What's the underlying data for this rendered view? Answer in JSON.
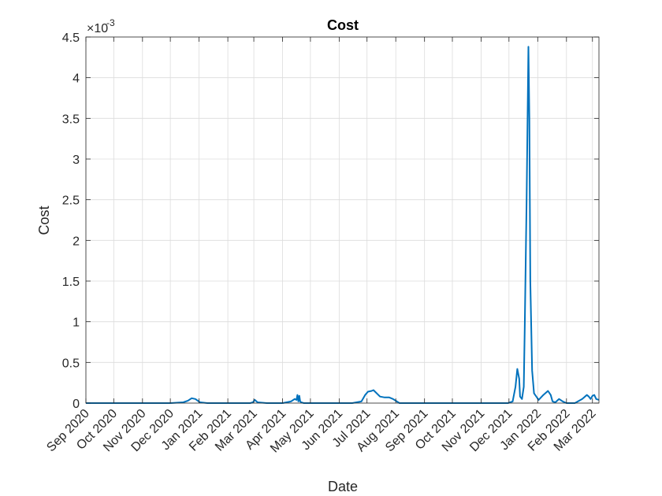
{
  "chart_data": {
    "type": "line",
    "title": "Cost",
    "xlabel": "Date",
    "ylabel": "Cost",
    "y_exponent_base": "×10",
    "y_exponent": "-3",
    "grid": true,
    "xlim": [
      "2020-09-01",
      "2022-03-08"
    ],
    "ylim": [
      0,
      4.5
    ],
    "x_ticks": [
      {
        "date": "2020-09-01",
        "label": "Sep 2020"
      },
      {
        "date": "2020-10-01",
        "label": "Oct 2020"
      },
      {
        "date": "2020-11-01",
        "label": "Nov 2020"
      },
      {
        "date": "2020-12-01",
        "label": "Dec 2020"
      },
      {
        "date": "2021-01-01",
        "label": "Jan 2021"
      },
      {
        "date": "2021-02-01",
        "label": "Feb 2021"
      },
      {
        "date": "2021-03-01",
        "label": "Mar 2021"
      },
      {
        "date": "2021-04-01",
        "label": "Apr 2021"
      },
      {
        "date": "2021-05-01",
        "label": "May 2021"
      },
      {
        "date": "2021-06-01",
        "label": "Jun 2021"
      },
      {
        "date": "2021-07-01",
        "label": "Jul 2021"
      },
      {
        "date": "2021-08-01",
        "label": "Aug 2021"
      },
      {
        "date": "2021-09-01",
        "label": "Sep 2021"
      },
      {
        "date": "2021-10-01",
        "label": "Oct 2021"
      },
      {
        "date": "2021-11-01",
        "label": "Nov 2021"
      },
      {
        "date": "2021-12-01",
        "label": "Dec 2021"
      },
      {
        "date": "2022-01-01",
        "label": "Jan 2022"
      },
      {
        "date": "2022-02-01",
        "label": "Feb 2022"
      },
      {
        "date": "2022-03-01",
        "label": "Mar 2022"
      }
    ],
    "y_ticks": [
      {
        "value": 0,
        "label": "0"
      },
      {
        "value": 0.5,
        "label": "0.5"
      },
      {
        "value": 1,
        "label": "1"
      },
      {
        "value": 1.5,
        "label": "1.5"
      },
      {
        "value": 2,
        "label": "2"
      },
      {
        "value": 2.5,
        "label": "2.5"
      },
      {
        "value": 3,
        "label": "3"
      },
      {
        "value": 3.5,
        "label": "3.5"
      },
      {
        "value": 4,
        "label": "4"
      },
      {
        "value": 4.5,
        "label": "4.5"
      }
    ],
    "series": [
      {
        "color": "#0072BD",
        "x": [
          "2020-09-01",
          "2020-12-01",
          "2020-12-15",
          "2020-12-20",
          "2020-12-24",
          "2020-12-28",
          "2021-01-02",
          "2021-01-10",
          "2021-02-25",
          "2021-02-28",
          "2021-03-02",
          "2021-03-05",
          "2021-03-15",
          "2021-04-01",
          "2021-04-10",
          "2021-04-14",
          "2021-04-16",
          "2021-04-17",
          "2021-04-18",
          "2021-04-19",
          "2021-04-20",
          "2021-04-21",
          "2021-04-24",
          "2021-05-01",
          "2021-06-15",
          "2021-06-25",
          "2021-06-29",
          "2021-07-02",
          "2021-07-06",
          "2021-07-08",
          "2021-07-15",
          "2021-07-20",
          "2021-07-25",
          "2021-07-29",
          "2021-08-05",
          "2021-11-15",
          "2021-11-30",
          "2021-12-05",
          "2021-12-08",
          "2021-12-10",
          "2021-12-12",
          "2021-12-13",
          "2021-12-15",
          "2021-12-17",
          "2021-12-18",
          "2021-12-20",
          "2021-12-22",
          "2021-12-23",
          "2021-12-24",
          "2021-12-26",
          "2021-12-28",
          "2022-01-02",
          "2022-01-07",
          "2022-01-12",
          "2022-01-15",
          "2022-01-17",
          "2022-01-20",
          "2022-01-24",
          "2022-01-28",
          "2022-02-01",
          "2022-02-10",
          "2022-02-18",
          "2022-02-21",
          "2022-02-23",
          "2022-02-25",
          "2022-02-27",
          "2022-03-01",
          "2022-03-03",
          "2022-03-05",
          "2022-03-08"
        ],
        "y": [
          0,
          0,
          0.01,
          0.03,
          0.06,
          0.05,
          0.01,
          0,
          0,
          0.01,
          0.04,
          0.01,
          0,
          0,
          0.02,
          0.05,
          0.04,
          0.1,
          0.02,
          0.09,
          0.02,
          0.01,
          0,
          0,
          0,
          0.02,
          0.1,
          0.14,
          0.15,
          0.16,
          0.08,
          0.07,
          0.07,
          0.05,
          0,
          0,
          0,
          0.02,
          0.2,
          0.42,
          0.3,
          0.08,
          0.05,
          0.2,
          0.9,
          2.5,
          4.38,
          3.5,
          1.5,
          0.4,
          0.12,
          0.04,
          0.1,
          0.15,
          0.1,
          0.02,
          0.01,
          0.05,
          0.02,
          0,
          0,
          0.05,
          0.08,
          0.1,
          0.08,
          0.05,
          0.09,
          0.1,
          0.05,
          0.04
        ]
      }
    ]
  }
}
